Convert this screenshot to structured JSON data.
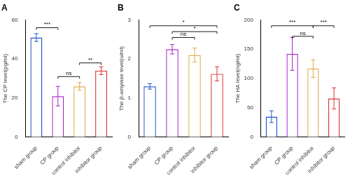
{
  "chart_data": [
    {
      "type": "bar",
      "title": "A",
      "ylabel": "The CP level(pg/ml)",
      "categories": [
        "sham group",
        "CP group",
        "control inhibitor",
        "inhibitor group"
      ],
      "values": [
        51,
        21,
        26,
        34
      ],
      "errors": [
        2,
        5,
        2,
        2
      ],
      "colors": [
        "#2255CC",
        "#AA22CC",
        "#DDAA44",
        "#DD3333"
      ],
      "ylim": [
        0,
        60
      ],
      "yticks": [
        0,
        20,
        40,
        60
      ],
      "grid": false,
      "annotations": [
        {
          "x1": "sham group",
          "x2": "CP group",
          "y": 56,
          "text": "***"
        },
        {
          "x1": "CP group",
          "x2": "control inhibitor",
          "y": 31,
          "text": "ns"
        },
        {
          "x1": "control inhibitor",
          "x2": "inhibitor group",
          "y": 38,
          "text": "**"
        }
      ]
    },
    {
      "type": "bar",
      "title": "B",
      "ylabel": "The β-amylase level(u/ml)",
      "categories": [
        "sham group",
        "CP group",
        "control inhibitor",
        "inhibitor group"
      ],
      "values": [
        1.3,
        2.25,
        2.1,
        1.62
      ],
      "errors": [
        0.07,
        0.12,
        0.18,
        0.18
      ],
      "colors": [
        "#2255CC",
        "#AA22CC",
        "#DDAA44",
        "#DD3333"
      ],
      "ylim": [
        0,
        3
      ],
      "yticks": [
        0,
        1,
        2,
        3
      ],
      "grid": false,
      "annotations": [
        {
          "x1": "sham group",
          "x2": "inhibitor group",
          "y": 2.85,
          "text": "*"
        },
        {
          "x1": "CP group",
          "x2": "control inhibitor",
          "y": 2.55,
          "text": "ns"
        },
        {
          "x1": "CP group",
          "x2": "inhibitor group",
          "y": 2.7,
          "text": "*"
        }
      ]
    },
    {
      "type": "bar",
      "title": "C",
      "ylabel": "The HA level(ng/ml)",
      "categories": [
        "sham group",
        "CP group",
        "control inhibitor",
        "inhibitor group"
      ],
      "values": [
        35,
        142,
        117,
        66
      ],
      "errors": [
        10,
        28,
        15,
        18
      ],
      "colors": [
        "#2255CC",
        "#AA22CC",
        "#DDAA44",
        "#DD3333"
      ],
      "ylim": [
        0,
        200
      ],
      "yticks": [
        0,
        50,
        100,
        150,
        200
      ],
      "grid": false,
      "annotations": [
        {
          "x1": "sham group",
          "x2": "control inhibitor",
          "y": 190,
          "text": "***"
        },
        {
          "x1": "CP group",
          "x2": "control inhibitor",
          "y": 172,
          "text": "ns"
        },
        {
          "x1": "control inhibitor",
          "x2": "inhibitor group",
          "y": 190,
          "text": "***"
        }
      ]
    }
  ]
}
